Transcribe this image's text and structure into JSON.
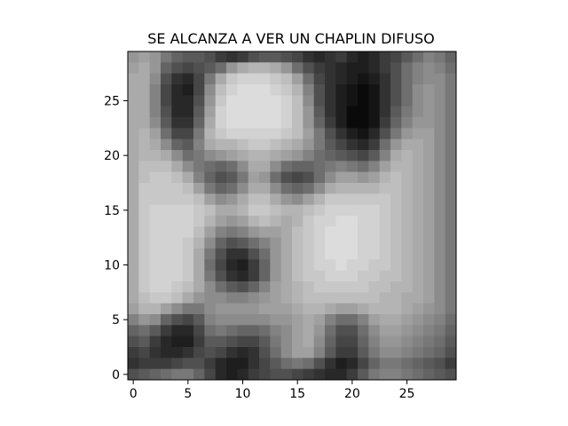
{
  "chart_data": {
    "type": "heatmap",
    "title": "SE ALCANZA A VER UN CHAPLIN DIFUSO",
    "xlabel": "",
    "ylabel": "",
    "colormap": "gray",
    "grid": false,
    "value_range": [
      0,
      255
    ],
    "x_range": [
      -0.5,
      29.5
    ],
    "y_range": [
      29.5,
      -0.5
    ],
    "x_ticks": [
      0,
      5,
      10,
      15,
      20,
      25
    ],
    "y_ticks": [
      0,
      5,
      10,
      15,
      20,
      25
    ],
    "rows": 30,
    "cols": 30,
    "values": [
      [
        150,
        160,
        150,
        120,
        100,
        90,
        90,
        80,
        60,
        50,
        60,
        80,
        90,
        90,
        80,
        70,
        50,
        40,
        50,
        60,
        40,
        30,
        40,
        60,
        70,
        90,
        110,
        130,
        120,
        100
      ],
      [
        160,
        170,
        150,
        100,
        80,
        70,
        80,
        90,
        110,
        150,
        170,
        180,
        180,
        170,
        150,
        110,
        80,
        60,
        50,
        40,
        30,
        30,
        40,
        60,
        80,
        110,
        130,
        140,
        130,
        110
      ],
      [
        170,
        170,
        140,
        80,
        50,
        40,
        70,
        120,
        170,
        200,
        210,
        210,
        210,
        200,
        190,
        160,
        110,
        70,
        50,
        40,
        30,
        20,
        30,
        50,
        80,
        110,
        130,
        140,
        140,
        120
      ],
      [
        170,
        170,
        130,
        70,
        40,
        30,
        70,
        140,
        190,
        210,
        220,
        220,
        220,
        210,
        200,
        180,
        130,
        80,
        50,
        30,
        20,
        10,
        20,
        50,
        80,
        110,
        140,
        150,
        140,
        120
      ],
      [
        170,
        170,
        130,
        70,
        40,
        40,
        80,
        150,
        200,
        220,
        220,
        220,
        220,
        220,
        210,
        190,
        140,
        80,
        50,
        30,
        20,
        10,
        20,
        50,
        80,
        110,
        140,
        150,
        140,
        120
      ],
      [
        170,
        170,
        130,
        80,
        40,
        40,
        90,
        160,
        210,
        220,
        220,
        220,
        220,
        220,
        210,
        190,
        150,
        90,
        50,
        30,
        10,
        10,
        20,
        50,
        90,
        120,
        140,
        150,
        140,
        120
      ],
      [
        170,
        170,
        140,
        90,
        50,
        50,
        100,
        170,
        210,
        220,
        220,
        220,
        220,
        220,
        210,
        190,
        150,
        100,
        60,
        30,
        10,
        10,
        20,
        60,
        100,
        130,
        150,
        150,
        140,
        120
      ],
      [
        170,
        180,
        160,
        110,
        70,
        70,
        120,
        180,
        200,
        210,
        210,
        210,
        210,
        210,
        200,
        190,
        160,
        120,
        80,
        50,
        30,
        20,
        40,
        80,
        120,
        150,
        160,
        160,
        140,
        120
      ],
      [
        170,
        180,
        170,
        140,
        100,
        90,
        130,
        170,
        180,
        180,
        190,
        200,
        200,
        190,
        180,
        170,
        150,
        120,
        90,
        70,
        50,
        40,
        60,
        110,
        150,
        170,
        170,
        160,
        140,
        120
      ],
      [
        170,
        180,
        180,
        170,
        140,
        110,
        120,
        140,
        150,
        160,
        170,
        180,
        180,
        170,
        160,
        150,
        130,
        110,
        100,
        90,
        80,
        70,
        90,
        130,
        170,
        180,
        170,
        160,
        140,
        120
      ],
      [
        170,
        190,
        190,
        190,
        170,
        140,
        120,
        110,
        100,
        110,
        140,
        170,
        170,
        140,
        110,
        100,
        100,
        110,
        120,
        130,
        120,
        110,
        130,
        160,
        180,
        180,
        170,
        160,
        140,
        120
      ],
      [
        170,
        190,
        200,
        200,
        190,
        170,
        130,
        100,
        80,
        90,
        120,
        160,
        150,
        110,
        80,
        70,
        80,
        110,
        140,
        160,
        160,
        150,
        160,
        180,
        190,
        180,
        170,
        160,
        140,
        120
      ],
      [
        170,
        200,
        200,
        200,
        200,
        190,
        160,
        120,
        100,
        110,
        140,
        170,
        170,
        140,
        110,
        100,
        110,
        140,
        170,
        180,
        180,
        180,
        180,
        190,
        190,
        180,
        170,
        160,
        140,
        120
      ],
      [
        170,
        200,
        200,
        200,
        200,
        200,
        190,
        160,
        140,
        150,
        170,
        190,
        190,
        170,
        150,
        140,
        160,
        180,
        200,
        200,
        200,
        200,
        200,
        200,
        190,
        180,
        170,
        160,
        140,
        120
      ],
      [
        170,
        200,
        210,
        210,
        210,
        210,
        200,
        190,
        170,
        170,
        180,
        200,
        200,
        190,
        180,
        180,
        190,
        200,
        210,
        210,
        210,
        210,
        210,
        200,
        190,
        180,
        170,
        160,
        140,
        120
      ],
      [
        170,
        200,
        210,
        210,
        210,
        210,
        200,
        180,
        160,
        150,
        160,
        180,
        190,
        180,
        170,
        180,
        200,
        210,
        210,
        220,
        220,
        210,
        210,
        200,
        190,
        180,
        170,
        160,
        140,
        120
      ],
      [
        170,
        200,
        210,
        210,
        210,
        210,
        190,
        160,
        130,
        120,
        130,
        150,
        160,
        160,
        170,
        190,
        200,
        210,
        220,
        220,
        220,
        210,
        210,
        200,
        190,
        180,
        170,
        160,
        140,
        120
      ],
      [
        170,
        200,
        210,
        210,
        210,
        200,
        180,
        140,
        100,
        80,
        90,
        110,
        130,
        150,
        170,
        190,
        200,
        210,
        220,
        220,
        220,
        210,
        210,
        200,
        190,
        180,
        170,
        160,
        140,
        120
      ],
      [
        170,
        200,
        210,
        210,
        210,
        200,
        170,
        120,
        80,
        50,
        50,
        80,
        110,
        150,
        170,
        190,
        200,
        210,
        220,
        220,
        220,
        210,
        210,
        200,
        190,
        180,
        170,
        160,
        140,
        120
      ],
      [
        170,
        200,
        210,
        210,
        210,
        200,
        170,
        110,
        70,
        40,
        30,
        60,
        100,
        150,
        170,
        190,
        200,
        210,
        210,
        220,
        210,
        210,
        200,
        200,
        190,
        180,
        170,
        160,
        140,
        120
      ],
      [
        170,
        200,
        210,
        210,
        210,
        200,
        170,
        120,
        80,
        50,
        40,
        60,
        100,
        150,
        170,
        190,
        200,
        200,
        210,
        210,
        210,
        200,
        200,
        190,
        190,
        180,
        170,
        160,
        140,
        120
      ],
      [
        170,
        200,
        210,
        210,
        200,
        190,
        170,
        140,
        110,
        90,
        80,
        100,
        130,
        160,
        170,
        180,
        190,
        200,
        200,
        200,
        200,
        200,
        190,
        190,
        180,
        180,
        170,
        160,
        140,
        120
      ],
      [
        170,
        190,
        200,
        200,
        190,
        170,
        150,
        140,
        140,
        130,
        130,
        140,
        150,
        160,
        170,
        180,
        190,
        190,
        190,
        190,
        190,
        190,
        190,
        180,
        180,
        170,
        170,
        160,
        140,
        120
      ],
      [
        160,
        180,
        180,
        160,
        140,
        120,
        120,
        140,
        150,
        150,
        150,
        150,
        160,
        160,
        160,
        170,
        180,
        180,
        170,
        160,
        160,
        170,
        180,
        180,
        180,
        170,
        160,
        150,
        140,
        120
      ],
      [
        130,
        150,
        140,
        100,
        80,
        70,
        90,
        130,
        140,
        140,
        140,
        140,
        140,
        150,
        150,
        160,
        170,
        160,
        130,
        110,
        110,
        130,
        160,
        170,
        170,
        160,
        150,
        140,
        130,
        110
      ],
      [
        100,
        110,
        90,
        60,
        40,
        40,
        70,
        110,
        120,
        110,
        100,
        100,
        110,
        130,
        140,
        160,
        170,
        150,
        110,
        80,
        80,
        110,
        140,
        160,
        160,
        150,
        140,
        130,
        120,
        100
      ],
      [
        80,
        90,
        60,
        40,
        30,
        30,
        60,
        90,
        90,
        80,
        70,
        70,
        90,
        120,
        140,
        160,
        170,
        140,
        100,
        70,
        70,
        100,
        130,
        150,
        150,
        140,
        130,
        120,
        110,
        90
      ],
      [
        60,
        70,
        50,
        40,
        40,
        50,
        70,
        80,
        70,
        50,
        40,
        50,
        80,
        110,
        140,
        160,
        160,
        130,
        90,
        60,
        60,
        90,
        120,
        140,
        140,
        130,
        120,
        110,
        100,
        80
      ],
      [
        50,
        60,
        60,
        60,
        70,
        80,
        80,
        60,
        40,
        30,
        30,
        50,
        70,
        90,
        110,
        120,
        110,
        80,
        50,
        30,
        40,
        70,
        100,
        120,
        120,
        110,
        100,
        90,
        80,
        60
      ],
      [
        80,
        90,
        100,
        110,
        120,
        120,
        100,
        70,
        40,
        30,
        40,
        60,
        70,
        80,
        80,
        70,
        60,
        50,
        40,
        40,
        60,
        90,
        120,
        130,
        130,
        120,
        110,
        100,
        90,
        80
      ]
    ]
  }
}
